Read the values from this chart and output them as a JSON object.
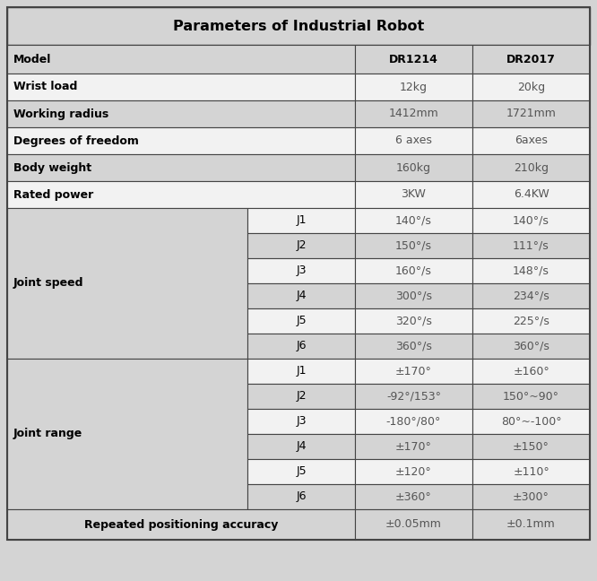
{
  "title": "Parameters of Industrial Robot",
  "title_fontsize": 11.5,
  "background_color": "#d4d4d4",
  "cell_bg_light": "#f2f2f2",
  "cell_bg_dark": "#d4d4d4",
  "border_color": "#444444",
  "rows": [
    {
      "type": "header",
      "cells": [
        "Model",
        "",
        "DR1214",
        "DR2017"
      ],
      "bg": "#d4d4d4",
      "bold": [
        true,
        false,
        true,
        true
      ],
      "align": [
        "left",
        "center",
        "center",
        "center"
      ]
    },
    {
      "type": "simple",
      "cells": [
        "Wrist load",
        "",
        "12kg",
        "20kg"
      ],
      "bg": "#f2f2f2",
      "bold": [
        true,
        false,
        false,
        false
      ],
      "align": [
        "left",
        "center",
        "center",
        "center"
      ]
    },
    {
      "type": "simple",
      "cells": [
        "Working radius",
        "",
        "1412mm",
        "1721mm"
      ],
      "bg": "#d4d4d4",
      "bold": [
        true,
        false,
        false,
        false
      ],
      "align": [
        "left",
        "center",
        "center",
        "center"
      ]
    },
    {
      "type": "simple",
      "cells": [
        "Degrees of freedom",
        "",
        "6 axes",
        "6axes"
      ],
      "bg": "#f2f2f2",
      "bold": [
        true,
        false,
        false,
        false
      ],
      "align": [
        "left",
        "center",
        "center",
        "center"
      ]
    },
    {
      "type": "simple",
      "cells": [
        "Body weight",
        "",
        "160kg",
        "210kg"
      ],
      "bg": "#d4d4d4",
      "bold": [
        true,
        false,
        false,
        false
      ],
      "align": [
        "left",
        "center",
        "center",
        "center"
      ]
    },
    {
      "type": "simple",
      "cells": [
        "Rated power",
        "",
        "3KW",
        "6.4KW"
      ],
      "bg": "#f2f2f2",
      "bold": [
        true,
        false,
        false,
        false
      ],
      "align": [
        "left",
        "center",
        "center",
        "center"
      ]
    },
    {
      "type": "group",
      "group_label": "Joint speed",
      "group_bg": "#d4d4d4",
      "sub_rows": [
        {
          "sub": "J1",
          "dr1214": "140°/s",
          "dr2017": "140°/s",
          "bg": "#f2f2f2"
        },
        {
          "sub": "J2",
          "dr1214": "150°/s",
          "dr2017": "111°/s",
          "bg": "#d4d4d4"
        },
        {
          "sub": "J3",
          "dr1214": "160°/s",
          "dr2017": "148°/s",
          "bg": "#f2f2f2"
        },
        {
          "sub": "J4",
          "dr1214": "300°/s",
          "dr2017": "234°/s",
          "bg": "#d4d4d4"
        },
        {
          "sub": "J5",
          "dr1214": "320°/s",
          "dr2017": "225°/s",
          "bg": "#f2f2f2"
        },
        {
          "sub": "J6",
          "dr1214": "360°/s",
          "dr2017": "360°/s",
          "bg": "#d4d4d4"
        }
      ]
    },
    {
      "type": "group",
      "group_label": "Joint range",
      "group_bg": "#d4d4d4",
      "sub_rows": [
        {
          "sub": "J1",
          "dr1214": "±170°",
          "dr2017": "±160°",
          "bg": "#f2f2f2"
        },
        {
          "sub": "J2",
          "dr1214": "-92°/153°",
          "dr2017": "150°~90°",
          "bg": "#d4d4d4"
        },
        {
          "sub": "J3",
          "dr1214": "-180°/80°",
          "dr2017": "80°~-100°",
          "bg": "#f2f2f2"
        },
        {
          "sub": "J4",
          "dr1214": "±170°",
          "dr2017": "±150°",
          "bg": "#d4d4d4"
        },
        {
          "sub": "J5",
          "dr1214": "±120°",
          "dr2017": "±110°",
          "bg": "#f2f2f2"
        },
        {
          "sub": "J6",
          "dr1214": "±360°",
          "dr2017": "±300°",
          "bg": "#d4d4d4"
        }
      ]
    },
    {
      "type": "footer",
      "cells": [
        "Repeated positioning accuracy",
        "",
        "±0.05mm",
        "±0.1mm"
      ],
      "bg": "#d4d4d4",
      "bold": [
        true,
        false,
        false,
        false
      ],
      "align": [
        "center",
        "center",
        "center",
        "center"
      ]
    }
  ]
}
